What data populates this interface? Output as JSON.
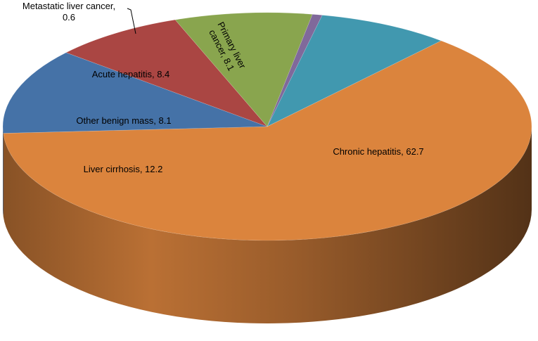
{
  "chart_data": {
    "type": "pie",
    "style": "3d",
    "title": "",
    "start_angle_deg": 12,
    "direction": "clockwise",
    "slices": [
      {
        "label": "Primary liver cancer",
        "value": 8.1,
        "color": "#4198AF",
        "label_lines": [
          "Primary liver",
          "cancer, 8.1"
        ]
      },
      {
        "label": "Chronic hepatitis",
        "value": 62.7,
        "color": "#DB843D",
        "label_lines": [
          "Chronic hepatitis, 62.7"
        ]
      },
      {
        "label": "Liver cirrhosis",
        "value": 12.2,
        "color": "#4572A7",
        "label_lines": [
          "Liver cirrhosis, 12.2"
        ]
      },
      {
        "label": "Other benign mass",
        "value": 8.1,
        "color": "#AA4643",
        "label_lines": [
          "Other benign mass, 8.1"
        ]
      },
      {
        "label": "Acute hepatitis",
        "value": 8.4,
        "color": "#89A54E",
        "label_lines": [
          "Acute hepatitis, 8.4"
        ]
      },
      {
        "label": "Metastatic liver cancer",
        "value": 0.6,
        "color": "#80699B",
        "label_lines": [
          "Metastatic liver cancer,",
          "0.6"
        ]
      }
    ]
  }
}
